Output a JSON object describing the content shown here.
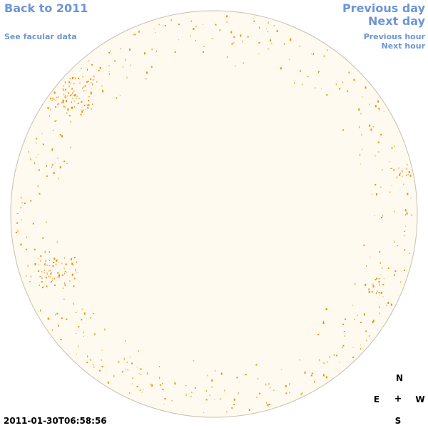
{
  "nav": {
    "back_year": "Back to 2011",
    "facular": "See facular data",
    "previous_day": "Previous day",
    "next_day": "Next day",
    "previous_hour": "Previous hour",
    "next_hour": "Next hour"
  },
  "timestamp": "2011-01-30T06:58:56",
  "compass": {
    "north": "N",
    "south": "S",
    "east": "E",
    "west": "W",
    "center": "+"
  },
  "colors": {
    "disk_fill": "#fffaf0",
    "disk_stroke": "#c8bfae",
    "feature": "#f0900a",
    "link": "#6c95d6"
  }
}
